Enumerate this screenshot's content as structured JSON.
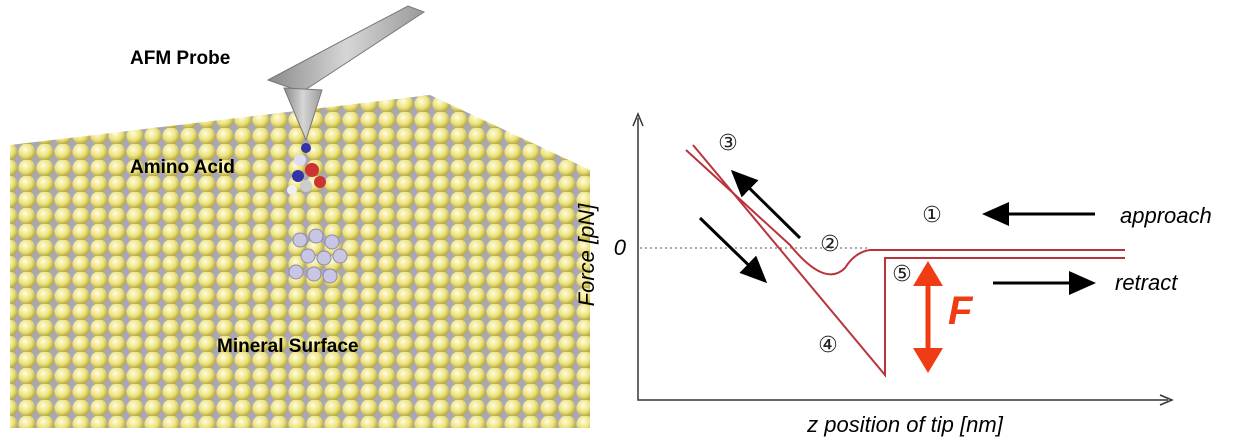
{
  "illustration": {
    "probe_label": "AFM Probe",
    "molecule_label": "Amino Acid",
    "surface_label": "Mineral Surface"
  },
  "plot": {
    "y_label": "Force [pN]",
    "x_label": "z position of tip [nm]",
    "zero_label": "0",
    "steps": [
      "①",
      "②",
      "③",
      "④",
      "⑤"
    ],
    "approach_label": "approach",
    "retract_label": "retract",
    "force_label": "F"
  }
}
